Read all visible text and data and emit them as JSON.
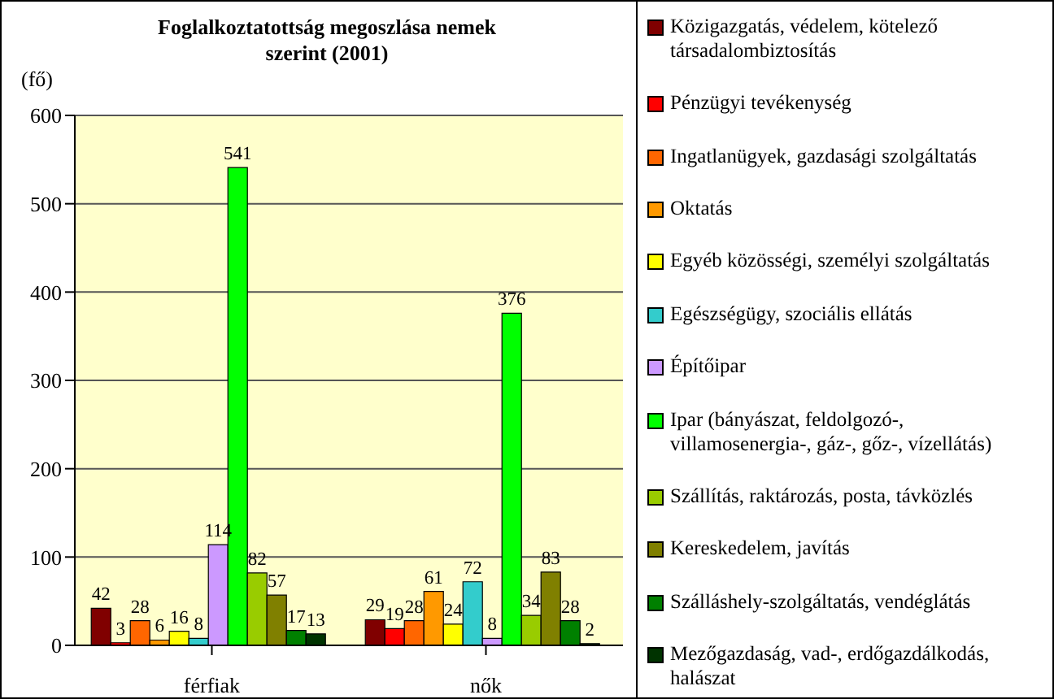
{
  "chart_data": {
    "type": "bar",
    "title": "Foglalkoztatottság megoszlása nemek szerint (2001)",
    "ylabel": "(fő)",
    "categories": [
      "férfiak",
      "nők"
    ],
    "ylim": [
      0,
      600
    ],
    "yticks": [
      0,
      100,
      200,
      300,
      400,
      500,
      600
    ],
    "grid": "y",
    "legend": "right",
    "data_labels": true,
    "series": [
      {
        "name": "Közigazgatás, védelem, kötelező társadalombiztosítás",
        "color": "#800000",
        "values": [
          42,
          29
        ]
      },
      {
        "name": "Pénzügyi tevékenység",
        "color": "#ff0000",
        "values": [
          3,
          19
        ]
      },
      {
        "name": "Ingatlanügyek, gazdasági szolgáltatás",
        "color": "#ff6600",
        "values": [
          28,
          28
        ]
      },
      {
        "name": "Oktatás",
        "color": "#ff9900",
        "values": [
          6,
          61
        ]
      },
      {
        "name": "Egyéb közösségi, személyi szolgáltatás",
        "color": "#ffff00",
        "values": [
          16,
          24
        ]
      },
      {
        "name": "Egészségügy, szociális ellátás",
        "color": "#33cccc",
        "values": [
          8,
          72
        ]
      },
      {
        "name": "Építőipar",
        "color": "#cc99ff",
        "values": [
          114,
          8
        ]
      },
      {
        "name": "Ipar (bányászat, feldolgozó-, villamosenergia-, gáz-, gőz-, vízellátás)",
        "color": "#00ff00",
        "values": [
          541,
          376
        ]
      },
      {
        "name": "Szállítás, raktározás, posta, távközlés",
        "color": "#99cc00",
        "values": [
          82,
          34
        ]
      },
      {
        "name": "Kereskedelem, javítás",
        "color": "#808000",
        "values": [
          57,
          83
        ]
      },
      {
        "name": "Szálláshely-szolgáltatás, vendéglátás",
        "color": "#008000",
        "values": [
          17,
          28
        ]
      },
      {
        "name": "Mezőgazdaság, vad-, erdőgazdálkodás, halászat",
        "color": "#003300",
        "values": [
          13,
          2
        ]
      }
    ]
  }
}
